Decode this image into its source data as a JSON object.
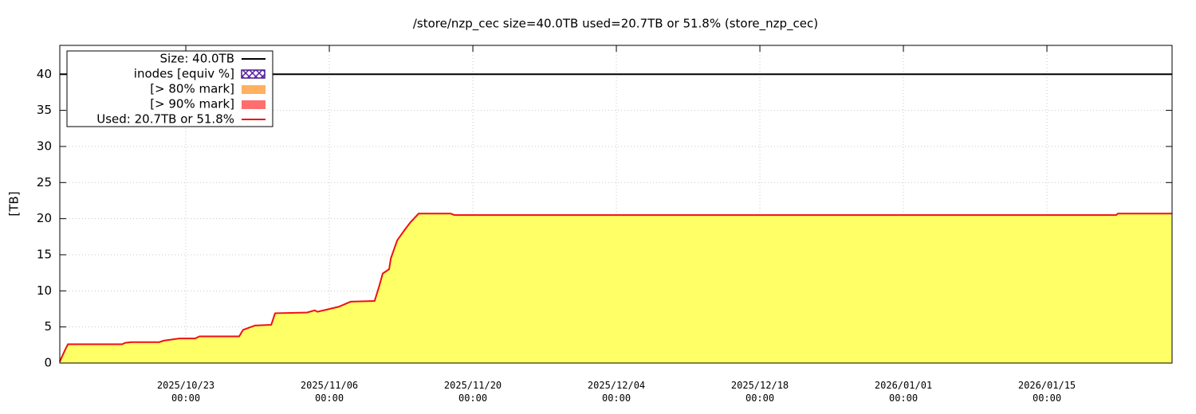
{
  "chart_data": {
    "type": "area",
    "title": "/store/nzp_cec size=40.0TB used=20.7TB or 51.8% (store_nzp_cec)",
    "y_label": "[TB]",
    "x": [
      "2025/10/10 17:00",
      "2025/10/10 23:00",
      "2025/10/11 06:00",
      "2025/10/11 12:00",
      "2025/10/16 19:00",
      "2025/10/17 02:00",
      "2025/10/17 17:00",
      "2025/10/20 10:00",
      "2025/10/20 20:00",
      "2025/10/22 09:00",
      "2025/10/23 22:00",
      "2025/10/24 08:00",
      "2025/10/28 05:00",
      "2025/10/28 14:00",
      "2025/10/29 18:00",
      "2025/10/31 08:00",
      "2025/10/31 17:00",
      "2025/11/03 20:00",
      "2025/11/04 14:00",
      "2025/11/04 20:00",
      "2025/11/05 18:00",
      "2025/11/06 22:00",
      "2025/11/08 02:00",
      "2025/11/10 10:00",
      "2025/11/10 20:00",
      "2025/11/11 05:00",
      "2025/11/11 20:00",
      "2025/11/12 00:00",
      "2025/11/12 15:00",
      "2025/11/13 09:00",
      "2025/11/13 22:00",
      "2025/11/14 17:00",
      "2025/11/17 20:00",
      "2025/11/18 05:00",
      "2026/01/21 18:00",
      "2026/01/21 22:00",
      "2026/01/27 05:00"
    ],
    "series": [
      {
        "name": "Size: 40.0TB",
        "color": "#000000",
        "style": "line",
        "values": [
          40,
          40,
          40,
          40,
          40,
          40,
          40,
          40,
          40,
          40,
          40,
          40,
          40,
          40,
          40,
          40,
          40,
          40,
          40,
          40,
          40,
          40,
          40,
          40,
          40,
          40,
          40,
          40,
          40,
          40,
          40,
          40,
          40,
          40,
          40,
          40,
          40
        ]
      },
      {
        "name": "inodes [equiv %]",
        "color": "#4b1a8c",
        "style": "hatch",
        "values": [
          0.4,
          0.4,
          0.4,
          0.4,
          0.4,
          0.4,
          0.4,
          0.4,
          0.4,
          0.4,
          0.4,
          0.4,
          0.4,
          0.4,
          0.4,
          0.4,
          0.4,
          0.4,
          0.4,
          0.4,
          0.4,
          0.4,
          0.4,
          0.4,
          0.4,
          0.4,
          0.4,
          0.4,
          0.4,
          0.4,
          0.4,
          0.4,
          0.4,
          0.4,
          0.4,
          0.4,
          0.4
        ]
      },
      {
        "name": "[> 80% mark]",
        "color": "#ffb060",
        "style": "fill",
        "values": [
          null,
          null,
          null,
          null,
          null,
          null,
          null,
          null,
          null,
          null,
          null,
          null,
          null,
          null,
          null,
          null,
          null,
          null,
          null,
          null,
          null,
          null,
          null,
          null,
          null,
          null,
          null,
          null,
          null,
          null,
          null,
          null,
          null,
          null,
          null,
          null,
          null
        ]
      },
      {
        "name": "[> 90% mark]",
        "color": "#ff6e6e",
        "style": "fill",
        "values": [
          null,
          null,
          null,
          null,
          null,
          null,
          null,
          null,
          null,
          null,
          null,
          null,
          null,
          null,
          null,
          null,
          null,
          null,
          null,
          null,
          null,
          null,
          null,
          null,
          null,
          null,
          null,
          null,
          null,
          null,
          null,
          null,
          null,
          null,
          null,
          null,
          null
        ]
      },
      {
        "name": "Used: 20.7TB or 51.8%",
        "color": "#ee1111",
        "fill": "#ffff66",
        "style": "line",
        "values": [
          0.2,
          1.0,
          1.9,
          2.6,
          2.6,
          2.8,
          2.9,
          2.9,
          3.1,
          3.4,
          3.4,
          3.7,
          3.7,
          4.6,
          5.2,
          5.3,
          6.9,
          7.0,
          7.3,
          7.1,
          7.4,
          7.8,
          8.5,
          8.6,
          10.5,
          12.4,
          13.0,
          14.5,
          17.0,
          18.5,
          19.5,
          20.7,
          20.7,
          20.5,
          20.5,
          20.7,
          20.7
        ]
      }
    ],
    "xlim": [
      "2025/10/10 17:00",
      "2026/01/27 05:00"
    ],
    "xticks": [
      "2025/10/23 00:00",
      "2025/11/06 00:00",
      "2025/11/20 00:00",
      "2025/12/04 00:00",
      "2025/12/18 00:00",
      "2026/01/01 00:00",
      "2026/01/15 00:00"
    ],
    "ylim": [
      0,
      44
    ],
    "yticks": [
      0,
      5,
      10,
      15,
      20,
      25,
      30,
      35,
      40
    ],
    "grid": true,
    "legend": "upper left"
  }
}
